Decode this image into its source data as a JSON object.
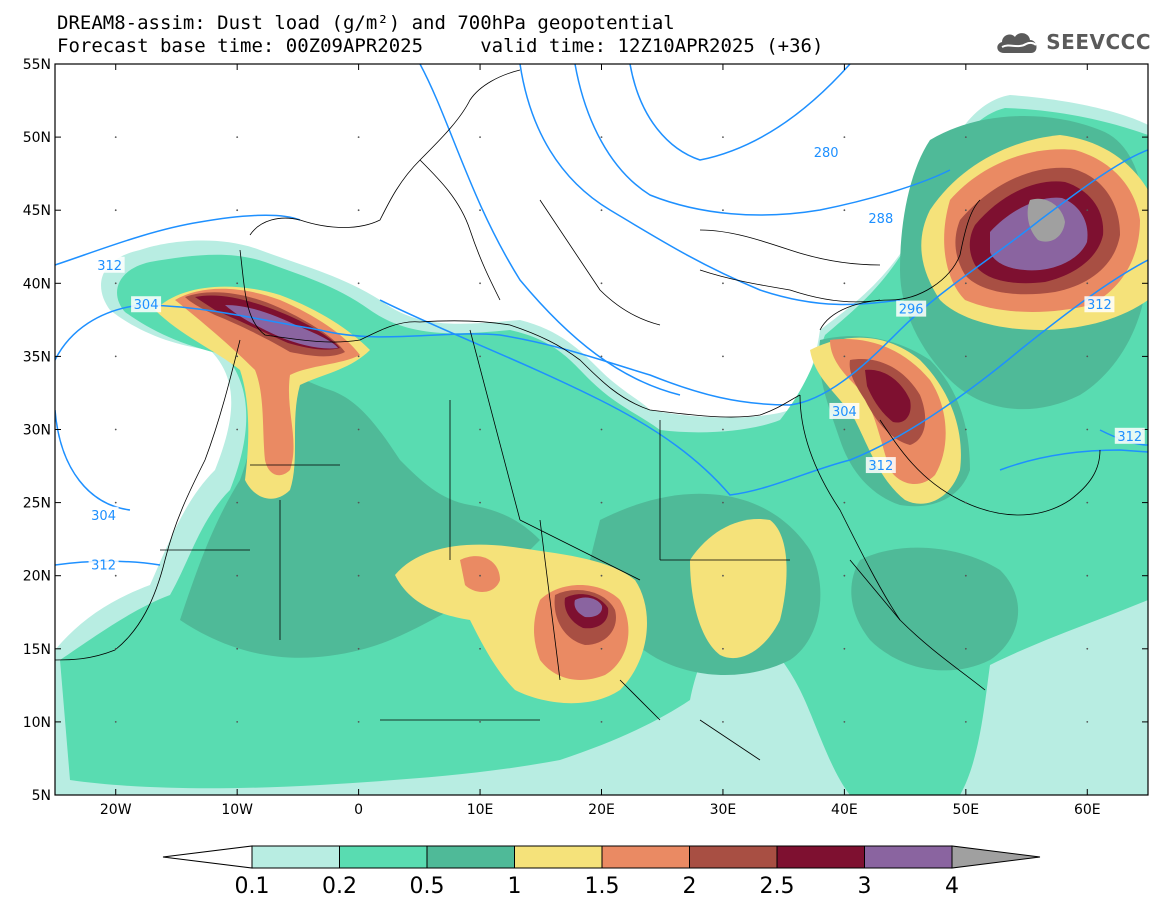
{
  "title": {
    "line1": "DREAM8-assim: Dust load (g/m²) and 700hPa geopotential",
    "line2": "Forecast base time: 00Z09APR2025     valid time: 12Z10APR2025 (+36)"
  },
  "logo": {
    "text": "SEEVCCC",
    "icon": "cloud-icon"
  },
  "map": {
    "lon_range": [
      -25,
      65
    ],
    "lat_range": [
      5,
      55
    ],
    "lat_ticks": [
      "55N",
      "50N",
      "45N",
      "40N",
      "35N",
      "30N",
      "25N",
      "20N",
      "15N",
      "10N",
      "5N"
    ],
    "lon_ticks": [
      "20W",
      "10W",
      "0",
      "10E",
      "20E",
      "30E",
      "40E",
      "50E",
      "60E"
    ],
    "contour_labels": [
      {
        "text": "312",
        "lon": -20.5,
        "lat": 41.2
      },
      {
        "text": "304",
        "lon": -17.5,
        "lat": 38.5
      },
      {
        "text": "304",
        "lon": -21,
        "lat": 24.1
      },
      {
        "text": "312",
        "lon": -21,
        "lat": 20.7
      },
      {
        "text": "280",
        "lon": 38.5,
        "lat": 48.9
      },
      {
        "text": "288",
        "lon": 43,
        "lat": 44.4
      },
      {
        "text": "296",
        "lon": 45.5,
        "lat": 38.2
      },
      {
        "text": "304",
        "lon": 40,
        "lat": 31.2
      },
      {
        "text": "312",
        "lon": 43,
        "lat": 27.5
      },
      {
        "text": "312",
        "lon": 61,
        "lat": 38.5
      },
      {
        "text": "312",
        "lon": 63.5,
        "lat": 29.5
      }
    ],
    "contour_color": "#1e90ff",
    "coast_color": "#000000"
  },
  "colorbar": {
    "labels": [
      "0.1",
      "0.2",
      "0.5",
      "1",
      "1.5",
      "2",
      "2.5",
      "3",
      "4"
    ],
    "colors": [
      "#b8ede2",
      "#59dcb1",
      "#4fba98",
      "#f5e27a",
      "#ea8a63",
      "#a84f43",
      "#7e1030",
      "#8a64a0",
      "#a0a0a0"
    ]
  }
}
